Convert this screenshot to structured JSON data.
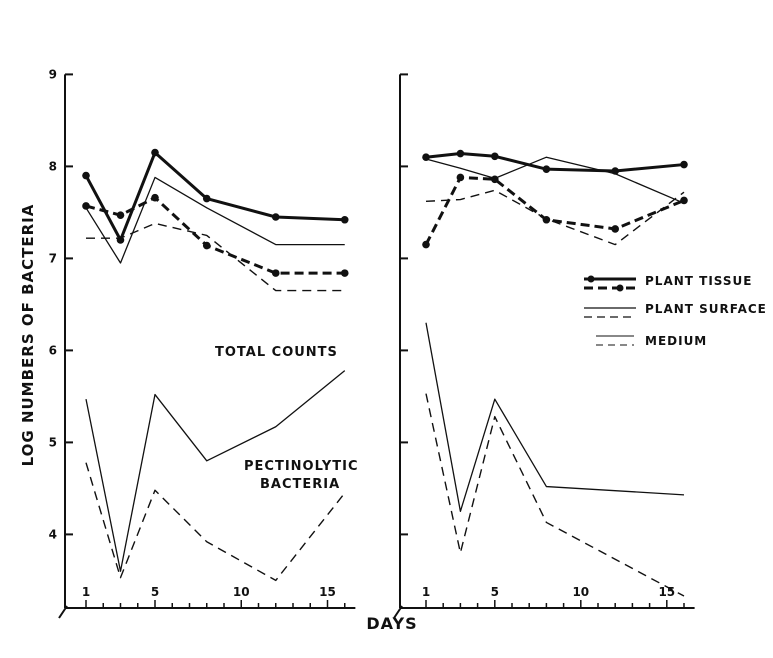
{
  "chart_data": {
    "type": "line",
    "xlabel": "DAYS",
    "ylabel": "LOG NUMBERS OF BACTERIA",
    "ylim": [
      3.2,
      9
    ],
    "yticks": [
      4,
      5,
      6,
      7,
      8,
      9
    ],
    "xticks": [
      1,
      5,
      10,
      15
    ],
    "xlim": [
      0,
      16.5
    ],
    "annotations": {
      "total": "TOTAL COUNTS",
      "pect1": "PECTINOLYTIC",
      "pect2": "BACTERIA"
    },
    "legend": {
      "placement": "right",
      "entries": [
        {
          "label": "PLANT TISSUE",
          "style": "thick-markers"
        },
        {
          "label": "PLANT SURFACE",
          "style": "thin"
        },
        {
          "label": "MEDIUM",
          "style": "thin"
        }
      ]
    },
    "panels": [
      {
        "name": "left",
        "series": [
          {
            "style": "thick-solid-marker",
            "x": [
              1,
              3,
              5,
              8,
              12,
              16
            ],
            "y": [
              7.9,
              7.2,
              8.15,
              7.65,
              7.45,
              7.42
            ]
          },
          {
            "style": "thick-dashed-marker",
            "x": [
              1,
              3,
              5,
              8,
              12,
              16
            ],
            "y": [
              7.57,
              7.47,
              7.66,
              7.14,
              6.84,
              6.84
            ]
          },
          {
            "style": "thin-solid",
            "x": [
              1,
              3,
              5,
              8,
              12,
              16
            ],
            "y": [
              7.55,
              6.95,
              7.88,
              7.55,
              7.15,
              7.15
            ]
          },
          {
            "style": "dashed",
            "x": [
              1,
              3,
              5,
              8,
              12,
              16
            ],
            "y": [
              7.22,
              7.22,
              7.38,
              7.25,
              6.65,
              6.65
            ]
          },
          {
            "style": "thin-solid",
            "x": [
              1,
              3,
              5,
              8,
              12,
              16
            ],
            "y": [
              5.47,
              3.6,
              5.52,
              4.8,
              5.17,
              5.78
            ]
          },
          {
            "style": "dashed",
            "x": [
              1,
              3,
              5,
              8,
              12,
              16
            ],
            "y": [
              4.78,
              3.53,
              4.48,
              3.92,
              3.5,
              4.45
            ]
          }
        ]
      },
      {
        "name": "right",
        "series": [
          {
            "style": "thick-solid-marker",
            "x": [
              1,
              3,
              5,
              8,
              12,
              16
            ],
            "y": [
              8.1,
              8.14,
              8.11,
              7.97,
              7.95,
              8.02
            ]
          },
          {
            "style": "thick-dashed-marker",
            "x": [
              1,
              3,
              5,
              8,
              12,
              16
            ],
            "y": [
              7.15,
              7.88,
              7.86,
              7.42,
              7.32,
              7.63
            ]
          },
          {
            "style": "thin-solid",
            "x": [
              1,
              3,
              5,
              8,
              12,
              16
            ],
            "y": [
              8.08,
              7.98,
              7.87,
              8.1,
              7.92,
              7.6
            ]
          },
          {
            "style": "dashed",
            "x": [
              1,
              3,
              5,
              8,
              12,
              16
            ],
            "y": [
              7.62,
              7.64,
              7.74,
              7.43,
              7.15,
              7.72
            ]
          },
          {
            "style": "thin-solid",
            "x": [
              1,
              3,
              5,
              8,
              16
            ],
            "y": [
              6.3,
              4.25,
              5.47,
              4.52,
              4.43
            ]
          },
          {
            "style": "dashed",
            "x": [
              1,
              3,
              5,
              8,
              16
            ],
            "y": [
              5.53,
              3.8,
              5.28,
              4.13,
              3.33
            ]
          }
        ]
      }
    ]
  }
}
